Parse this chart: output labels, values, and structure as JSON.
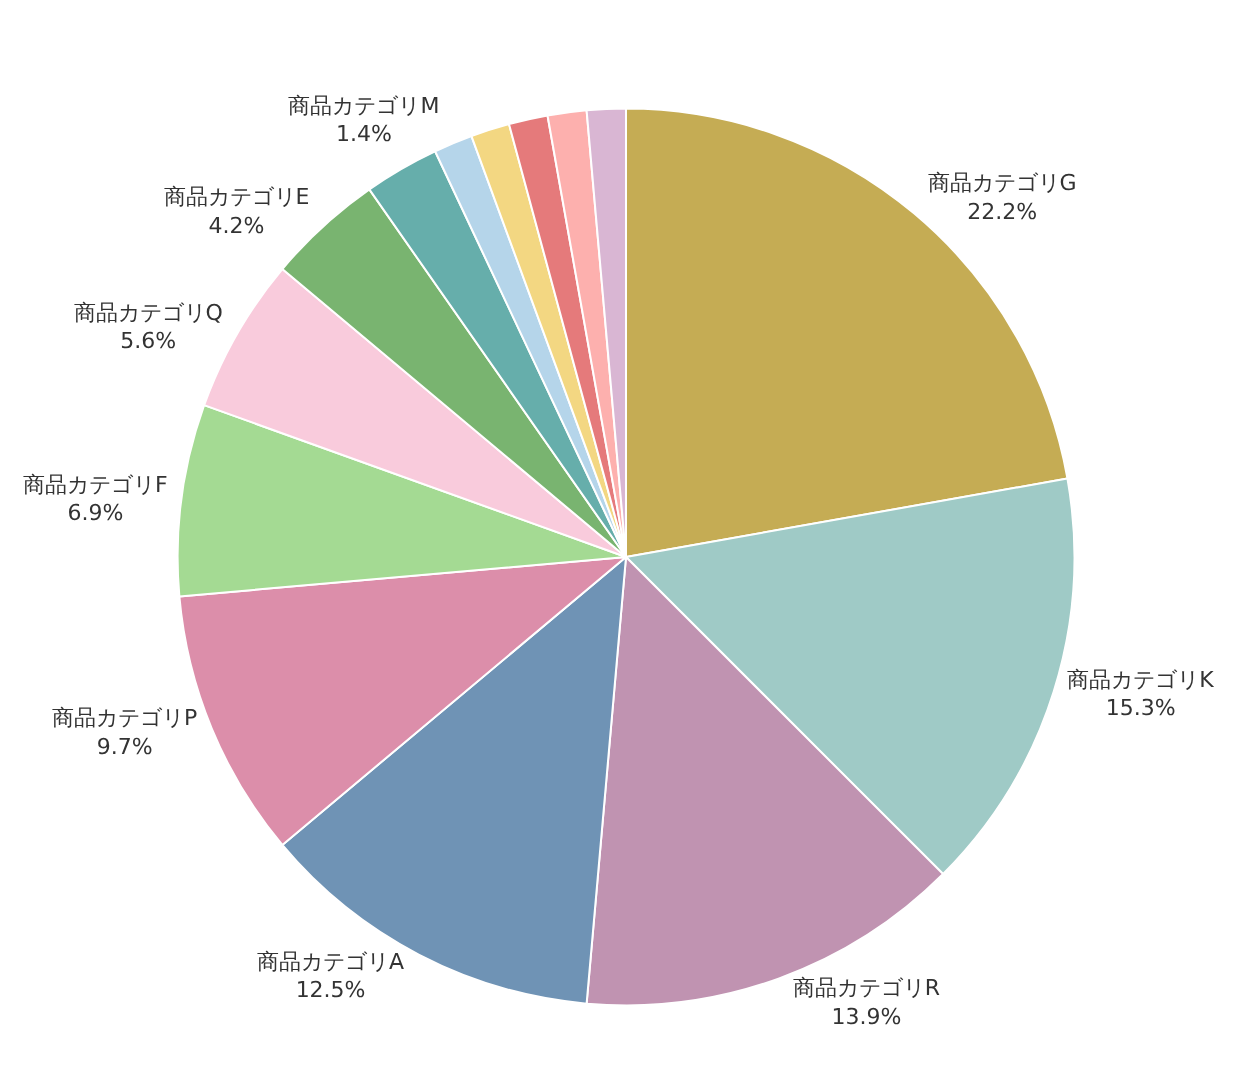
{
  "chart_data": {
    "type": "pie",
    "categories": [
      "商品カテゴリG",
      "商品カテゴリK",
      "商品カテゴリR",
      "商品カテゴリA",
      "商品カテゴリP",
      "商品カテゴリF",
      "商品カテゴリQ",
      "商品カテゴリE",
      null,
      "商品カテゴリM",
      null,
      null,
      null,
      null
    ],
    "values": [
      22.2,
      15.3,
      13.9,
      12.5,
      9.7,
      6.9,
      5.6,
      4.2,
      2.7,
      1.4,
      1.4,
      1.4,
      1.4,
      1.4
    ],
    "value_labels": [
      "22.2%",
      "15.3%",
      "13.9%",
      "12.5%",
      "9.7%",
      "6.9%",
      "5.6%",
      "4.2%",
      null,
      "1.4%",
      null,
      null,
      null,
      null
    ],
    "colors": [
      "#c5ac54",
      "#9fcac6",
      "#c093b1",
      "#6f93b5",
      "#dc8eaa",
      "#a4da93",
      "#f9cbdc",
      "#79b470",
      "#66aeab",
      "#b5d5ea",
      "#f3d782",
      "#e57a7b",
      "#fdb0ae",
      "#d9b6d3"
    ],
    "legend": false
  }
}
